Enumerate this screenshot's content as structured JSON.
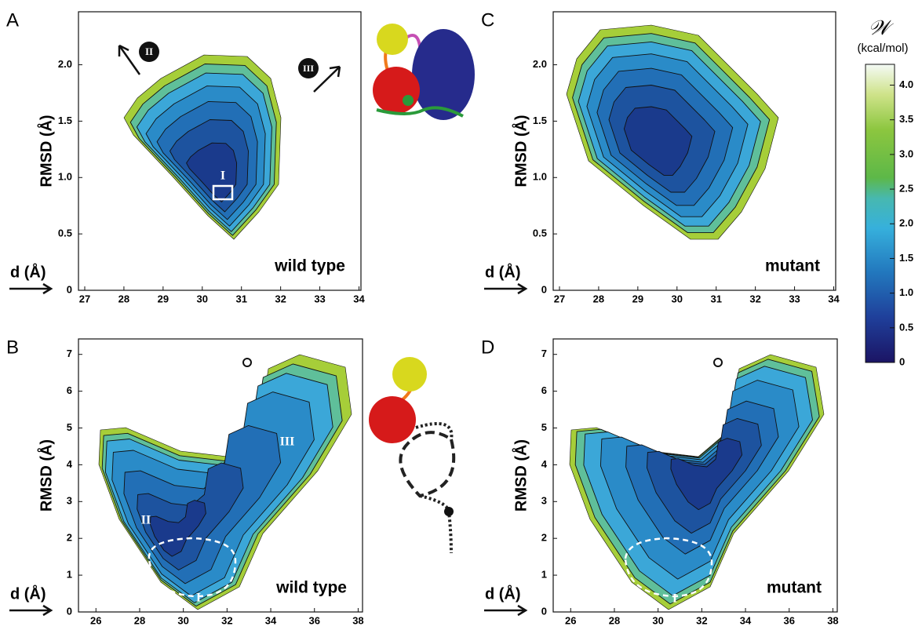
{
  "chart_data": [
    {
      "type": "heatmap",
      "panel": "A",
      "xlabel": "d (Å)",
      "ylabel": "RMSD (Å)",
      "annotation": "wild type",
      "labels": [
        "I",
        "II",
        "III"
      ],
      "xlim": [
        26.84,
        34.05
      ],
      "xticks": [
        27,
        28,
        29,
        30,
        31,
        32,
        33,
        34
      ],
      "ylim": [
        0,
        2.47
      ],
      "yticks": [
        0,
        0.5,
        {
          "value": 1,
          "label": "1.0"
        },
        1.5,
        {
          "value": 2,
          "label": "2.0"
        }
      ]
    },
    {
      "type": "heatmap",
      "panel": "B",
      "xlabel": "d (Å)",
      "ylabel": "RMSD (Å)",
      "annotation": "wild type",
      "labels": [
        "I",
        "II",
        "III"
      ],
      "xlim": [
        25.2,
        38.2
      ],
      "xticks": [
        26,
        28,
        30,
        32,
        34,
        36,
        38
      ],
      "ylim": [
        0,
        7.42
      ],
      "yticks": [
        0,
        1,
        2,
        3,
        4,
        5,
        6,
        7
      ]
    },
    {
      "type": "heatmap",
      "panel": "C",
      "xlabel": "d (Å)",
      "ylabel": "RMSD (Å)",
      "annotation": "mutant",
      "xlim": [
        26.84,
        34.05
      ],
      "xticks": [
        27,
        28,
        29,
        30,
        31,
        32,
        33,
        34
      ],
      "ylim": [
        0,
        2.47
      ],
      "yticks": [
        0,
        0.5,
        {
          "value": 1,
          "label": "1.0"
        },
        1.5,
        {
          "value": 2,
          "label": "2.0"
        }
      ]
    },
    {
      "type": "heatmap",
      "panel": "D",
      "xlabel": "d (Å)",
      "ylabel": "RMSD (Å)",
      "annotation": "mutant",
      "labels": [
        "I"
      ],
      "xlim": [
        25.2,
        38.2
      ],
      "xticks": [
        26,
        28,
        30,
        32,
        34,
        36,
        38
      ],
      "ylim": [
        0,
        7.42
      ],
      "yticks": [
        0,
        1,
        2,
        3,
        4,
        5,
        6,
        7
      ]
    }
  ],
  "colorbar": {
    "title": "𝒲",
    "unit": "(kcal/mol)",
    "lim": [
      0,
      4.3
    ],
    "ticks": [
      0,
      0.5,
      {
        "value": 1,
        "label": "1.0"
      },
      1.5,
      {
        "value": 2,
        "label": "2.0"
      },
      2.5,
      {
        "value": 3,
        "label": "3.0"
      },
      3.5,
      {
        "value": 4,
        "label": "4.0"
      }
    ]
  }
}
